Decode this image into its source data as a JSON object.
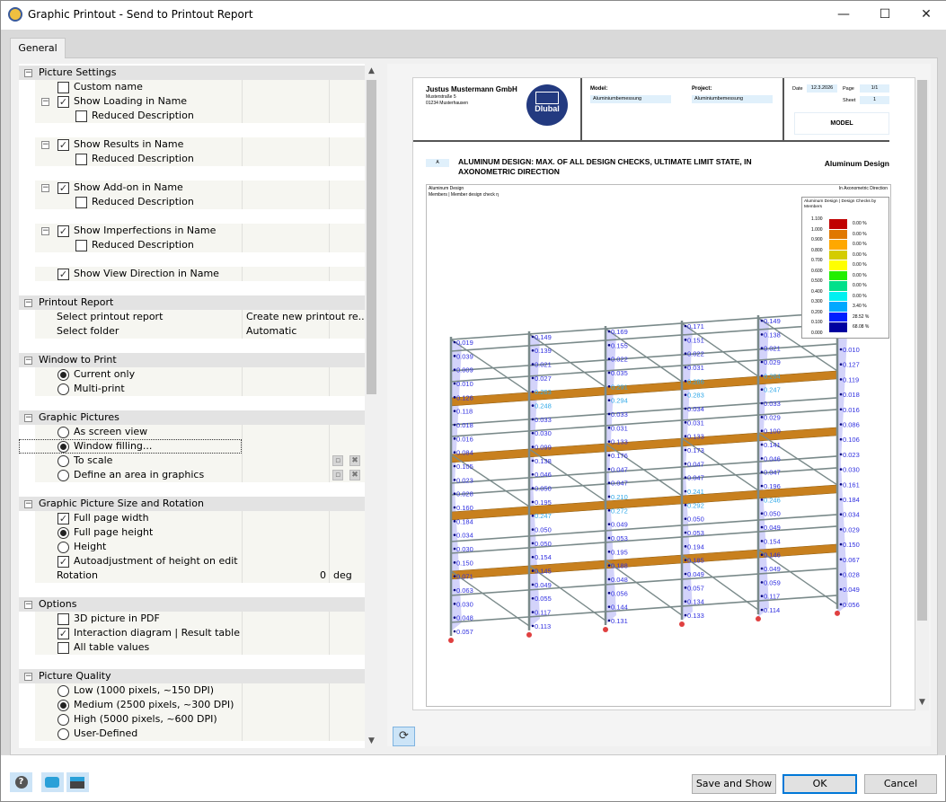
{
  "window": {
    "title": "Graphic Printout - Send to Printout Report",
    "minimize": "—",
    "maximize": "☐",
    "close": "✕"
  },
  "tabs": [
    {
      "label": "General"
    }
  ],
  "tree": [
    {
      "type": "header",
      "label": "Picture Settings"
    },
    {
      "type": "check",
      "level": 1,
      "label": "Custom name",
      "checked": false
    },
    {
      "type": "check",
      "level": 1,
      "label": "Show Loading in Name",
      "checked": true,
      "expander": true
    },
    {
      "type": "check",
      "level": 2,
      "label": "Reduced Description",
      "checked": false
    },
    {
      "type": "blank"
    },
    {
      "type": "check",
      "level": 1,
      "label": "Show Results in Name",
      "checked": true,
      "expander": true
    },
    {
      "type": "check",
      "level": 2,
      "label": "Reduced Description",
      "checked": false
    },
    {
      "type": "blank"
    },
    {
      "type": "check",
      "level": 1,
      "label": "Show Add-on in Name",
      "checked": true,
      "expander": true
    },
    {
      "type": "check",
      "level": 2,
      "label": "Reduced Description",
      "checked": false
    },
    {
      "type": "blank"
    },
    {
      "type": "check",
      "level": 1,
      "label": "Show Imperfections in Name",
      "checked": true,
      "expander": true
    },
    {
      "type": "check",
      "level": 2,
      "label": "Reduced Description",
      "checked": false
    },
    {
      "type": "blank"
    },
    {
      "type": "check",
      "level": 1,
      "label": "Show View Direction in Name",
      "checked": true
    },
    {
      "type": "blank"
    },
    {
      "type": "header",
      "label": "Printout Report"
    },
    {
      "type": "prop",
      "label": "Select printout report",
      "value": "Create new printout re..."
    },
    {
      "type": "prop",
      "label": "Select folder",
      "value": "Automatic"
    },
    {
      "type": "blank"
    },
    {
      "type": "header",
      "label": "Window to Print"
    },
    {
      "type": "radio",
      "level": 1,
      "label": "Current only",
      "checked": true
    },
    {
      "type": "radio",
      "level": 1,
      "label": "Multi-print",
      "checked": false
    },
    {
      "type": "blank"
    },
    {
      "type": "header",
      "label": "Graphic Pictures"
    },
    {
      "type": "radio",
      "level": 1,
      "label": "As screen view",
      "checked": false
    },
    {
      "type": "radio",
      "level": 1,
      "label": "Window filling...",
      "checked": true,
      "focused": true
    },
    {
      "type": "radio",
      "level": 1,
      "label": "To scale",
      "checked": false,
      "tools": true
    },
    {
      "type": "radio",
      "level": 1,
      "label": "Define an area in graphics",
      "checked": false,
      "tools": true
    },
    {
      "type": "blank"
    },
    {
      "type": "header",
      "label": "Graphic Picture Size and Rotation"
    },
    {
      "type": "check",
      "level": 1,
      "label": "Full page width",
      "checked": true
    },
    {
      "type": "radio",
      "level": 1,
      "label": "Full page height",
      "checked": true
    },
    {
      "type": "radio",
      "level": 1,
      "label": "Height",
      "checked": false
    },
    {
      "type": "check",
      "level": 1,
      "label": "Autoadjustment of height on edit",
      "checked": true
    },
    {
      "type": "prop",
      "label": "Rotation",
      "num": "0",
      "unit": "deg"
    },
    {
      "type": "blank"
    },
    {
      "type": "header",
      "label": "Options"
    },
    {
      "type": "check",
      "level": 1,
      "label": "3D picture in PDF",
      "checked": false
    },
    {
      "type": "check",
      "level": 1,
      "label": "Interaction diagram | Result table",
      "checked": true
    },
    {
      "type": "check",
      "level": 1,
      "label": "All table values",
      "checked": false
    },
    {
      "type": "blank"
    },
    {
      "type": "header",
      "label": "Picture Quality"
    },
    {
      "type": "radio",
      "level": 1,
      "label": "Low (1000 pixels, ~150 DPI)",
      "checked": false
    },
    {
      "type": "radio",
      "level": 1,
      "label": "Medium (2500 pixels, ~300 DPI)",
      "checked": true
    },
    {
      "type": "radio",
      "level": 1,
      "label": "High (5000 pixels, ~600 DPI)",
      "checked": false
    },
    {
      "type": "radio",
      "level": 1,
      "label": "User-Defined",
      "checked": false
    }
  ],
  "report": {
    "company": "Justus Mustermann GmbH",
    "street": "Musterstraße 5",
    "city": "01234 Musterhausen",
    "logo": "Dlubal",
    "model_label": "Model:",
    "model": "Aluminiumbemessung",
    "project_label": "Project:",
    "project": "Aluminiumbemessung",
    "date_label": "Date",
    "date": "12.3.2026",
    "page_label": "Page",
    "page": "1/1",
    "sheet_label": "Sheet",
    "sheet": "1",
    "section": "MODEL",
    "chapter": "A",
    "heading1": "ALUMINUM DESIGN: MAX. OF ALL DESIGN CHECKS, ULTIMATE LIMIT STATE, IN",
    "heading2": "AXONOMETRIC DIRECTION",
    "heading_right": "Aluminum Design",
    "graphic_line1": "Aluminum Design",
    "graphic_line2": "Members | Member design check η",
    "direction": "In Axonometric Direction",
    "legend_title1": "Aluminum Design | Design Checks by",
    "legend_title2": "Members",
    "legend": [
      {
        "from": "1.000",
        "to": "1.100",
        "color": "#c00000",
        "pct": "0.00 %"
      },
      {
        "from": "0.900",
        "to": "1.000",
        "color": "#e07800",
        "pct": "0.00 %"
      },
      {
        "from": "0.800",
        "to": "0.900",
        "color": "#ffa800",
        "pct": "0.00 %"
      },
      {
        "from": "0.700",
        "to": "0.800",
        "color": "#d4cc00",
        "pct": "0.00 %"
      },
      {
        "from": "0.600",
        "to": "0.700",
        "color": "#ffff00",
        "pct": "0.00 %"
      },
      {
        "from": "0.500",
        "to": "0.600",
        "color": "#22ee00",
        "pct": "0.00 %"
      },
      {
        "from": "0.400",
        "to": "0.500",
        "color": "#00e08a",
        "pct": "0.00 %"
      },
      {
        "from": "0.300",
        "to": "0.400",
        "color": "#00f0f0",
        "pct": "0.00 %"
      },
      {
        "from": "0.200",
        "to": "0.300",
        "color": "#00a8ff",
        "pct": "3.40 %"
      },
      {
        "from": "0.100",
        "to": "0.200",
        "color": "#0020ff",
        "pct": "28.52 %"
      },
      {
        "from": "0.000",
        "to": "0.100",
        "color": "#0000a0",
        "pct": "68.08 %"
      }
    ],
    "member_values": [
      [
        "0.019",
        "0.039",
        "0.009",
        "0.010",
        "0.126",
        "0.118",
        "0.018",
        "0.016",
        "0.084",
        "0.105",
        "0.023",
        "0.028",
        "0.160",
        "0.184",
        "0.034",
        "0.030",
        "0.150",
        "0.071",
        "0.063",
        "0.030",
        "0.048",
        "0.057"
      ],
      [
        "0.149",
        "0.139",
        "0.021",
        "0.027",
        "0.263",
        "0.248",
        "0.033",
        "0.030",
        "0.099",
        "0.138",
        "0.046",
        "0.050",
        "0.195",
        "0.247",
        "0.050",
        "0.050",
        "0.154",
        "0.145",
        "0.049",
        "0.055",
        "0.117",
        "0.113"
      ],
      [
        "0.169",
        "0.155",
        "0.022",
        "0.035",
        "0.291",
        "0.294",
        "0.033",
        "0.031",
        "0.133",
        "0.176",
        "0.047",
        "0.047",
        "0.210",
        "0.272",
        "0.049",
        "0.053",
        "0.195",
        "0.188",
        "0.048",
        "0.056",
        "0.144",
        "0.131"
      ],
      [
        "0.171",
        "0.151",
        "0.022",
        "0.031",
        "0.286",
        "0.283",
        "0.034",
        "0.031",
        "0.133",
        "0.173",
        "0.047",
        "0.047",
        "0.241",
        "0.292",
        "0.050",
        "0.053",
        "0.194",
        "0.185",
        "0.049",
        "0.057",
        "0.134",
        "0.133"
      ],
      [
        "0.149",
        "0.138",
        "0.021",
        "0.029",
        "0.264",
        "0.247",
        "0.033",
        "0.029",
        "0.100",
        "0.141",
        "0.046",
        "0.047",
        "0.196",
        "0.246",
        "0.050",
        "0.049",
        "0.154",
        "0.146",
        "0.049",
        "0.059",
        "0.117",
        "0.114"
      ],
      [
        "0.010",
        "0.127",
        "0.119",
        "0.018",
        "0.016",
        "0.086",
        "0.106",
        "0.023",
        "0.030",
        "0.161",
        "0.184",
        "0.034",
        "0.029",
        "0.150",
        "0.067",
        "0.028",
        "0.049",
        "0.056"
      ]
    ]
  },
  "colors": {
    "deck": "#c8801e",
    "member": "#7a8a8a",
    "diagram": "#8080f0",
    "label": "#3030e0",
    "logo": "#233a80",
    "accent": "#0078d7"
  },
  "footer": {
    "icons": [
      "help-icon",
      "send-to-report-icon",
      "save-to-report-icon"
    ],
    "save_and_show": "Save and Show",
    "ok": "OK",
    "cancel": "Cancel"
  }
}
